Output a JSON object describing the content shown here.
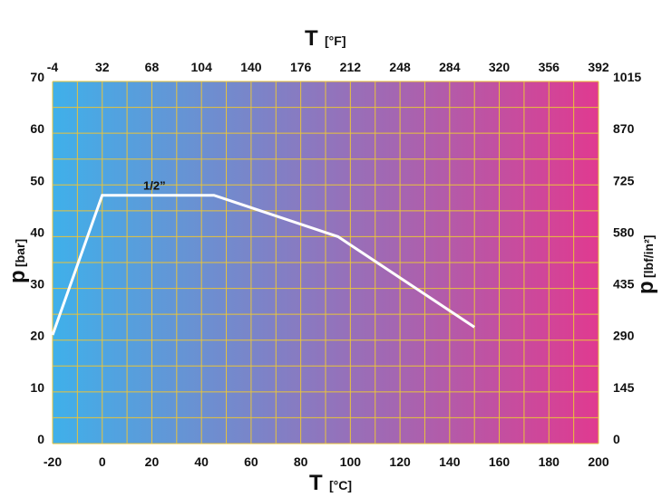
{
  "chart_data": {
    "type": "line",
    "colors": {
      "gradient_start": "#3fb0ea",
      "gradient_end": "#e03a90",
      "grid": "#e8c33a",
      "line": "#ffffff"
    },
    "x_bottom": {
      "symbol": "T",
      "unit": "[°C]",
      "range": [
        -20,
        200
      ],
      "ticks": [
        "-20",
        "0",
        "20",
        "40",
        "60",
        "80",
        "100",
        "120",
        "140",
        "160",
        "180",
        "200"
      ]
    },
    "x_top": {
      "symbol": "T",
      "unit": "[°F]",
      "ticks": [
        "-4",
        "32",
        "68",
        "104",
        "140",
        "176",
        "212",
        "248",
        "284",
        "320",
        "356",
        "392"
      ]
    },
    "y_left": {
      "symbol": "p",
      "unit": "[bar]",
      "range": [
        0,
        70
      ],
      "ticks": [
        "0",
        "10",
        "20",
        "30",
        "40",
        "50",
        "60",
        "70"
      ]
    },
    "y_right": {
      "symbol": "p",
      "unit": "[lbf/in²]",
      "ticks": [
        "0",
        "145",
        "290",
        "435",
        "580",
        "725",
        "870",
        "1015"
      ]
    },
    "grid": true,
    "series": [
      {
        "name": "1/2”",
        "x": [
          -20,
          0,
          45,
          95,
          150
        ],
        "y": [
          21,
          48,
          48,
          40,
          22.5
        ]
      }
    ]
  }
}
